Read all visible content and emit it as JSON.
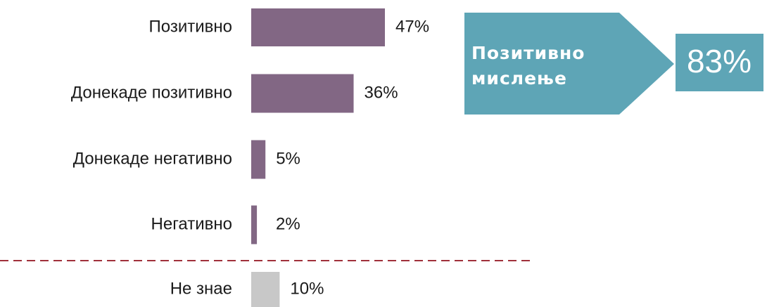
{
  "chart_data": {
    "type": "bar",
    "orientation": "horizontal",
    "categories": [
      "Позитивно",
      "Донекаде позитивно",
      "Донекаде негативно",
      "Негативно",
      "Не знае"
    ],
    "values": [
      47,
      36,
      5,
      2,
      10
    ],
    "value_labels": [
      "47%",
      "36%",
      "5%",
      "2%",
      "10%"
    ],
    "colors": [
      "#826784",
      "#826784",
      "#826784",
      "#826784",
      "#c8c8c8"
    ],
    "annotation": {
      "text": "Позитивно мислење",
      "value": 83,
      "value_label": "83%",
      "color": "#5ea5b6"
    }
  }
}
